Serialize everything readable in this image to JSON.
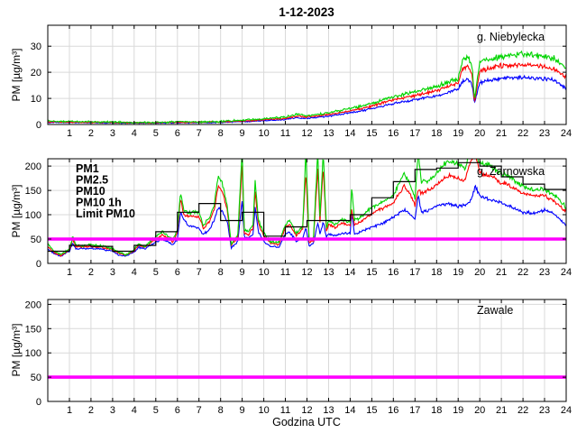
{
  "title": "1-12-2023",
  "xlabel": "Godzina UTC",
  "chart_data": [
    {
      "type": "line",
      "station": "g. Niebylecka",
      "ylabel": "PM [µg/m³]",
      "xlim": [
        0,
        24
      ],
      "ylim": [
        0,
        38
      ],
      "xticks": [
        1,
        2,
        3,
        4,
        5,
        6,
        7,
        8,
        9,
        10,
        11,
        12,
        13,
        14,
        15,
        16,
        17,
        18,
        19,
        20,
        21,
        22,
        23,
        24
      ],
      "yticks": [
        0,
        10,
        20,
        30
      ],
      "grid": true,
      "x_hours": [
        0,
        1,
        2,
        3,
        4,
        5,
        6,
        7,
        8,
        9,
        10,
        11,
        11.5,
        12,
        13,
        14,
        15,
        16,
        17,
        18,
        19,
        19.2,
        19.45,
        19.65,
        19.75,
        20,
        20.5,
        21,
        22,
        22.5,
        23,
        23.5,
        24
      ],
      "series": [
        {
          "name": "PM1",
          "color": "#0000ff",
          "noise": 0.9,
          "values": [
            0.8,
            0.75,
            0.7,
            0.6,
            0.55,
            0.55,
            0.7,
            0.7,
            0.8,
            1.1,
            1.5,
            1.9,
            2.6,
            2.4,
            3.2,
            4.4,
            6.0,
            8.0,
            9.5,
            11.0,
            13.5,
            16.5,
            17.5,
            15.0,
            8.0,
            16.0,
            17.0,
            17.5,
            18.0,
            17.8,
            17.5,
            17.0,
            13.5
          ]
        },
        {
          "name": "PM2.5",
          "color": "#ff0000",
          "noise": 1.1,
          "values": [
            1.0,
            0.9,
            0.85,
            0.75,
            0.7,
            0.7,
            0.85,
            0.85,
            1.0,
            1.3,
            1.8,
            2.3,
            3.2,
            2.9,
            3.8,
            5.2,
            7.0,
            9.5,
            11.0,
            13.0,
            16.0,
            21.5,
            22.5,
            19.0,
            8.5,
            20.5,
            21.5,
            22.5,
            23.0,
            22.5,
            22.0,
            21.0,
            18.0
          ]
        },
        {
          "name": "PM10",
          "color": "#00d400",
          "noise": 1.5,
          "values": [
            1.2,
            1.1,
            1.0,
            0.9,
            0.8,
            0.8,
            1.0,
            1.0,
            1.2,
            1.6,
            2.2,
            2.8,
            3.8,
            3.4,
            4.4,
            6.0,
            8.0,
            10.8,
            12.5,
            14.5,
            17.5,
            24.5,
            26.0,
            22.0,
            9.5,
            24.0,
            25.0,
            26.0,
            27.0,
            26.5,
            26.0,
            25.0,
            21.5
          ]
        }
      ]
    },
    {
      "type": "line",
      "station": "g. Zarnowska",
      "ylabel": "PM [µg/m³]",
      "xlim": [
        0,
        24
      ],
      "ylim": [
        0,
        215
      ],
      "xticks": [
        1,
        2,
        3,
        4,
        5,
        6,
        7,
        8,
        9,
        10,
        11,
        12,
        13,
        14,
        15,
        16,
        17,
        18,
        19,
        20,
        21,
        22,
        23,
        24
      ],
      "yticks": [
        0,
        50,
        100,
        150,
        200
      ],
      "grid": true,
      "legend_items": [
        {
          "label": "PM1",
          "color": "#0000ff"
        },
        {
          "label": "PM2.5",
          "color": "#ff0000"
        },
        {
          "label": "PM10",
          "color": "#00d400"
        },
        {
          "label": "PM10 1h",
          "color": "#000000"
        },
        {
          "label": "Limit PM10",
          "color": "#ff00ff"
        }
      ],
      "x_hours": [
        0,
        0.3,
        0.6,
        1.0,
        1.15,
        1.3,
        1.6,
        2.0,
        2.5,
        3.0,
        3.3,
        3.6,
        4.0,
        4.2,
        4.5,
        5.0,
        5.3,
        5.6,
        5.8,
        6.0,
        6.15,
        6.3,
        6.5,
        7.0,
        7.2,
        7.5,
        7.7,
        7.9,
        8.1,
        8.3,
        8.5,
        8.8,
        9.0,
        9.1,
        9.3,
        9.5,
        9.6,
        9.75,
        10.0,
        10.3,
        10.7,
        11.0,
        11.2,
        11.5,
        11.8,
        11.95,
        12.1,
        12.3,
        12.5,
        12.6,
        12.75,
        12.9,
        13.0,
        13.3,
        13.6,
        14.0,
        14.07,
        14.2,
        14.5,
        15.0,
        15.5,
        16.0,
        16.5,
        16.8,
        17.0,
        17.15,
        17.3,
        17.6,
        18.0,
        18.5,
        19.0,
        19.3,
        19.6,
        19.8,
        20.0,
        20.5,
        21.0,
        21.5,
        22.0,
        22.5,
        23.0,
        23.3,
        23.6,
        24.0
      ],
      "series": [
        {
          "name": "PM1",
          "color": "#0000ff",
          "noise": 5,
          "values": [
            30,
            20,
            15,
            25,
            42,
            30,
            30,
            31,
            29,
            25,
            17,
            15,
            23,
            33,
            30,
            44,
            50,
            44,
            38,
            50,
            105,
            90,
            78,
            72,
            60,
            70,
            88,
            115,
            105,
            88,
            32,
            45,
            130,
            55,
            52,
            60,
            115,
            65,
            45,
            35,
            33,
            60,
            65,
            45,
            52,
            75,
            36,
            42,
            85,
            60,
            85,
            55,
            60,
            57,
            62,
            62,
            105,
            60,
            65,
            75,
            82,
            95,
            110,
            100,
            92,
            140,
            105,
            108,
            118,
            123,
            118,
            120,
            130,
            160,
            138,
            130,
            125,
            115,
            105,
            103,
            110,
            105,
            95,
            78
          ]
        },
        {
          "name": "PM2.5",
          "color": "#ff0000",
          "noise": 6.5,
          "values": [
            35,
            22,
            16,
            28,
            50,
            35,
            34,
            35,
            33,
            28,
            20,
            17,
            26,
            37,
            33,
            50,
            58,
            50,
            44,
            63,
            135,
            100,
            97,
            97,
            72,
            88,
            110,
            160,
            145,
            110,
            37,
            55,
            205,
            62,
            60,
            73,
            150,
            82,
            57,
            42,
            39,
            74,
            80,
            57,
            70,
            190,
            44,
            48,
            195,
            85,
            200,
            65,
            80,
            73,
            82,
            78,
            110,
            80,
            85,
            103,
            112,
            125,
            160,
            140,
            120,
            150,
            145,
            150,
            162,
            180,
            175,
            170,
            215,
            222,
            185,
            180,
            165,
            158,
            145,
            138,
            140,
            132,
            122,
            107
          ]
        },
        {
          "name": "PM10",
          "color": "#00d400",
          "noise": 8,
          "values": [
            40,
            25,
            18,
            30,
            55,
            38,
            36,
            38,
            36,
            30,
            22,
            18,
            28,
            40,
            35,
            55,
            65,
            55,
            48,
            70,
            145,
            110,
            105,
            105,
            78,
            95,
            120,
            180,
            160,
            120,
            40,
            60,
            230,
            70,
            65,
            80,
            170,
            90,
            62,
            45,
            42,
            80,
            90,
            62,
            75,
            230,
            48,
            52,
            230,
            95,
            230,
            70,
            88,
            80,
            90,
            85,
            160,
            90,
            95,
            115,
            125,
            140,
            185,
            160,
            135,
            230,
            165,
            170,
            185,
            210,
            205,
            195,
            230,
            230,
            205,
            200,
            185,
            175,
            160,
            150,
            152,
            145,
            135,
            115
          ]
        },
        {
          "name": "PM10 1h",
          "type": "step",
          "color": "#000000",
          "hours": [
            0,
            1,
            2,
            3,
            4,
            5,
            6,
            7,
            8,
            9,
            10,
            11,
            12,
            13,
            14,
            15,
            16,
            17,
            18,
            19,
            20,
            21,
            22,
            23
          ],
          "values": [
            25,
            37,
            35,
            25,
            37,
            65,
            105,
            123,
            88,
            105,
            56,
            75,
            88,
            88,
            100,
            135,
            168,
            193,
            196,
            207,
            200,
            178,
            163,
            152
          ]
        },
        {
          "name": "Limit PM10",
          "type": "hline",
          "color": "#ff00ff",
          "value": 50
        }
      ]
    },
    {
      "type": "line",
      "station": "Zawale",
      "ylabel": "PM [µg/m³]",
      "xlim": [
        0,
        24
      ],
      "ylim": [
        0,
        210
      ],
      "xticks": [
        1,
        2,
        3,
        4,
        5,
        6,
        7,
        8,
        9,
        10,
        11,
        12,
        13,
        14,
        15,
        16,
        17,
        18,
        19,
        20,
        21,
        22,
        23,
        24
      ],
      "yticks": [
        0,
        50,
        100,
        150,
        200
      ],
      "grid": true,
      "series": [
        {
          "name": "Limit PM10",
          "type": "hline",
          "color": "#ff00ff",
          "value": 50
        }
      ]
    }
  ]
}
